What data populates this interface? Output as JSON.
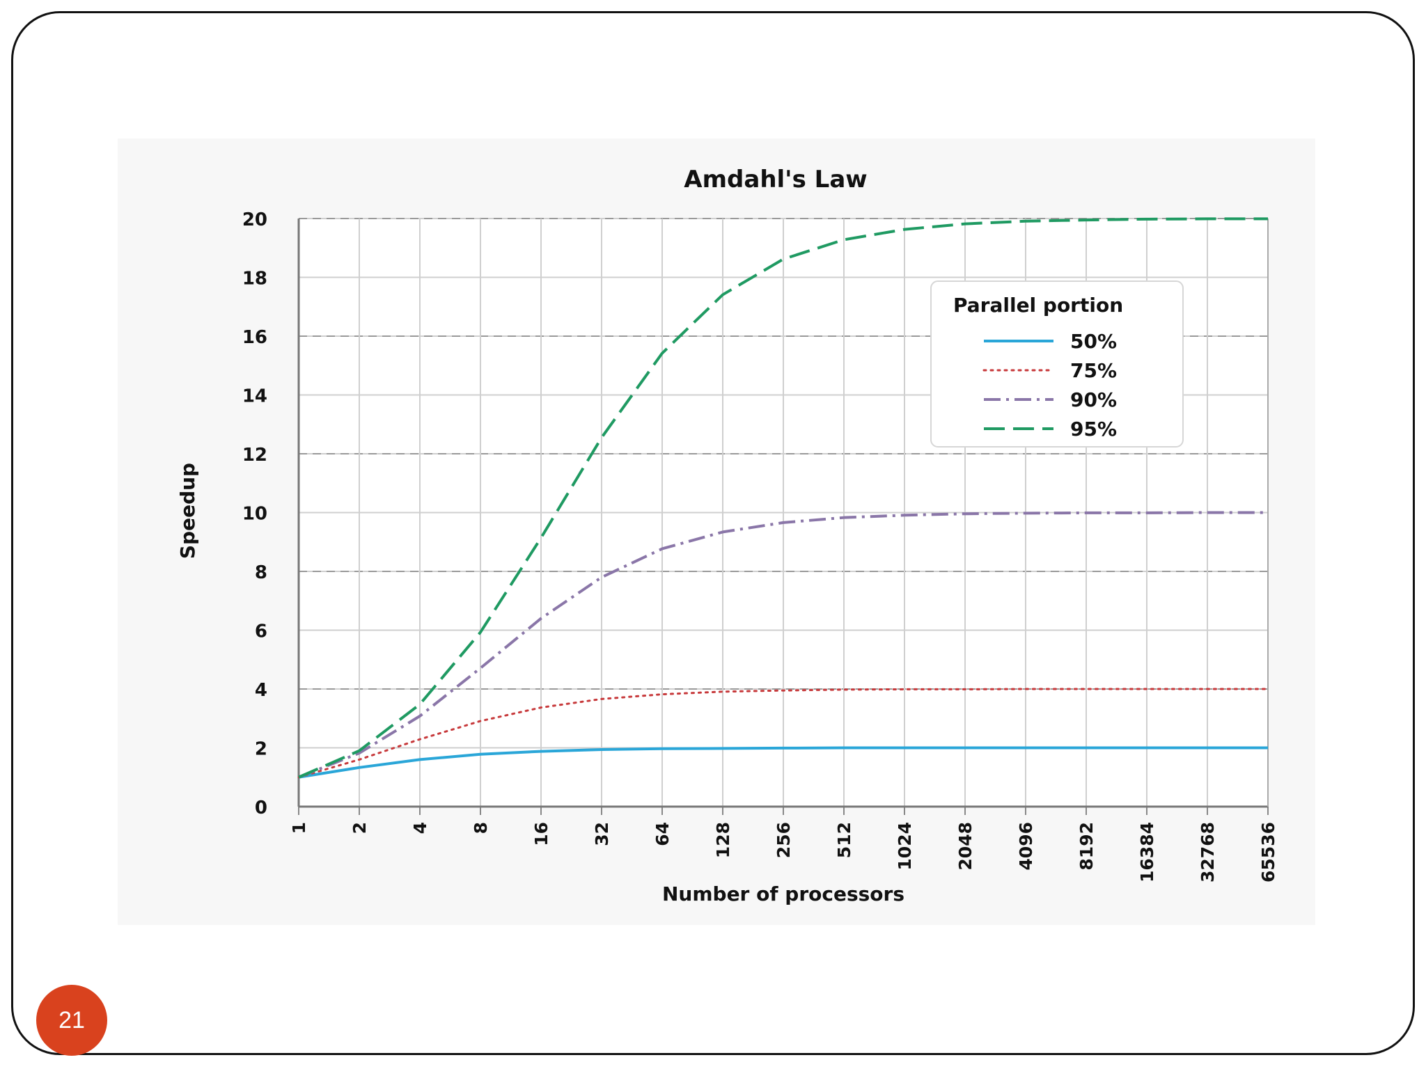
{
  "slide": {
    "page_number": "21"
  },
  "chart_data": {
    "type": "line",
    "title": "Amdahl's Law",
    "xlabel": "Number of processors",
    "ylabel": "Speedup",
    "x_scale": "log2",
    "x": [
      1,
      2,
      4,
      8,
      16,
      32,
      64,
      128,
      256,
      512,
      1024,
      2048,
      4096,
      8192,
      16384,
      32768,
      65536
    ],
    "x_tick_labels": [
      "1",
      "2",
      "4",
      "8",
      "16",
      "32",
      "64",
      "128",
      "256",
      "512",
      "1024",
      "2048",
      "4096",
      "8192",
      "16384",
      "32768",
      "65536"
    ],
    "ylim": [
      0,
      20
    ],
    "y_ticks": [
      0,
      2,
      4,
      6,
      8,
      10,
      12,
      14,
      16,
      18,
      20
    ],
    "grid": true,
    "legend": {
      "title": "Parallel portion",
      "placement": "top-right"
    },
    "series": [
      {
        "name": "50%",
        "color": "#2aa6d8",
        "style": "solid",
        "values": [
          1.0,
          1.33,
          1.6,
          1.78,
          1.88,
          1.94,
          1.97,
          1.98,
          1.99,
          2.0,
          2.0,
          2.0,
          2.0,
          2.0,
          2.0,
          2.0,
          2.0
        ]
      },
      {
        "name": "75%",
        "color": "#c7393b",
        "style": "dotted",
        "values": [
          1.0,
          1.6,
          2.29,
          2.91,
          3.37,
          3.66,
          3.82,
          3.91,
          3.95,
          3.98,
          3.99,
          3.99,
          4.0,
          4.0,
          4.0,
          4.0,
          4.0
        ]
      },
      {
        "name": "90%",
        "color": "#8a76a8",
        "style": "dashdot",
        "values": [
          1.0,
          1.82,
          3.08,
          4.71,
          6.4,
          7.8,
          8.77,
          9.34,
          9.66,
          9.83,
          9.91,
          9.96,
          9.98,
          9.99,
          9.99,
          10.0,
          10.0
        ]
      },
      {
        "name": "95%",
        "color": "#1f9a62",
        "style": "dashed",
        "values": [
          1.0,
          1.9,
          3.48,
          5.93,
          9.14,
          12.55,
          15.42,
          17.41,
          18.62,
          19.28,
          19.63,
          19.82,
          19.91,
          19.95,
          19.98,
          19.99,
          19.99
        ]
      }
    ]
  }
}
